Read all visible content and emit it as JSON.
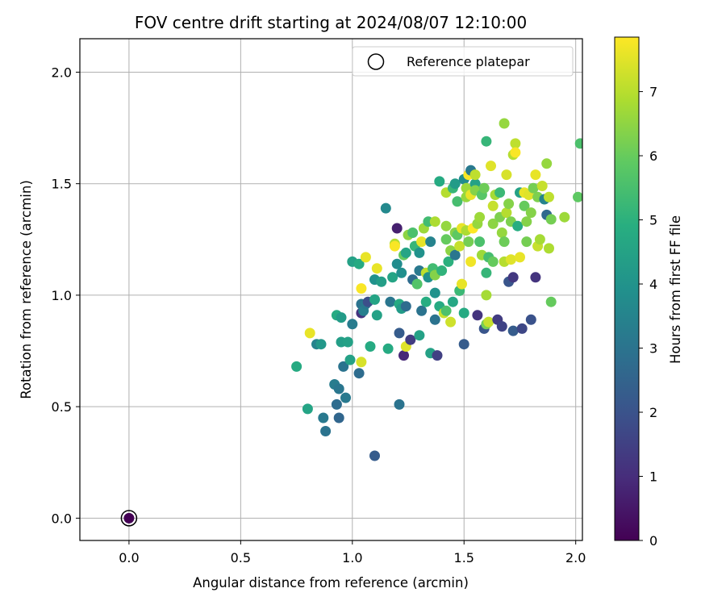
{
  "chart_data": {
    "type": "scatter",
    "title": "FOV centre drift starting at 2024/08/07 12:10:00",
    "xlabel": "Angular distance from reference (arcmin)",
    "ylabel": "Rotation from reference (arcmin)",
    "xlim": [
      -0.22,
      2.03
    ],
    "ylim": [
      -0.1,
      2.15
    ],
    "xticks": [
      "0.0",
      "0.5",
      "1.0",
      "1.5",
      "2.0"
    ],
    "xtick_values": [
      0.0,
      0.5,
      1.0,
      1.5,
      2.0
    ],
    "yticks": [
      "0.0",
      "0.5",
      "1.0",
      "1.5",
      "2.0"
    ],
    "ytick_values": [
      0.0,
      0.5,
      1.0,
      1.5,
      2.0
    ],
    "grid": true,
    "legend": {
      "placement": "top-right",
      "entries": [
        "Reference platepar"
      ]
    },
    "reference_point": {
      "x": 0.0,
      "y": 0.0,
      "hours": 0.0
    },
    "colorbar": {
      "label": "Hours from first FF file",
      "min": 0,
      "max": 7.85,
      "ticks": [
        "0",
        "1",
        "2",
        "3",
        "4",
        "5",
        "6",
        "7"
      ],
      "tick_values": [
        0,
        1,
        2,
        3,
        4,
        5,
        6,
        7
      ],
      "colormap": "viridis"
    },
    "series": [
      {
        "points": [
          [
            0.75,
            0.68,
            4.8
          ],
          [
            0.8,
            0.49,
            4.6
          ],
          [
            0.81,
            0.83,
            7.6
          ],
          [
            0.84,
            0.78,
            3.5
          ],
          [
            0.86,
            0.78,
            4.2
          ],
          [
            0.87,
            0.45,
            3.2
          ],
          [
            0.88,
            0.39,
            3.0
          ],
          [
            0.92,
            0.6,
            3.3
          ],
          [
            0.93,
            0.51,
            2.8
          ],
          [
            0.93,
            0.91,
            4.8
          ],
          [
            0.94,
            0.58,
            3.1
          ],
          [
            0.94,
            0.45,
            2.6
          ],
          [
            0.95,
            0.9,
            4.3
          ],
          [
            0.95,
            0.79,
            4.4
          ],
          [
            0.96,
            0.68,
            3.0
          ],
          [
            0.97,
            0.54,
            3.2
          ],
          [
            0.98,
            0.79,
            4.5
          ],
          [
            0.99,
            0.71,
            4.5
          ],
          [
            1.0,
            1.15,
            4.5
          ],
          [
            1.0,
            0.87,
            3.3
          ],
          [
            1.03,
            1.14,
            4.8
          ],
          [
            1.03,
            0.65,
            2.8
          ],
          [
            1.04,
            0.92,
            1.2
          ],
          [
            1.04,
            0.96,
            3.0
          ],
          [
            1.04,
            0.7,
            7.4
          ],
          [
            1.04,
            1.03,
            7.8
          ],
          [
            1.05,
            0.93,
            3.4
          ],
          [
            1.06,
            1.17,
            7.6
          ],
          [
            1.06,
            0.96,
            3.2
          ],
          [
            1.07,
            0.97,
            1.9
          ],
          [
            1.08,
            0.77,
            4.8
          ],
          [
            1.1,
            1.07,
            4.0
          ],
          [
            1.1,
            0.98,
            4.6
          ],
          [
            1.1,
            0.28,
            2.3
          ],
          [
            1.11,
            1.12,
            7.6
          ],
          [
            1.11,
            0.91,
            4.5
          ],
          [
            1.13,
            1.06,
            4.4
          ],
          [
            1.15,
            1.39,
            3.7
          ],
          [
            1.16,
            0.76,
            4.8
          ],
          [
            1.17,
            0.97,
            3.1
          ],
          [
            1.18,
            1.08,
            4.6
          ],
          [
            1.19,
            1.23,
            7.0
          ],
          [
            1.19,
            1.22,
            7.8
          ],
          [
            1.2,
            1.14,
            3.8
          ],
          [
            1.2,
            1.3,
            0.7
          ],
          [
            1.21,
            0.96,
            4.8
          ],
          [
            1.21,
            0.83,
            2.3
          ],
          [
            1.21,
            0.51,
            3.0
          ],
          [
            1.22,
            0.94,
            4.3
          ],
          [
            1.22,
            1.1,
            3.9
          ],
          [
            1.23,
            0.73,
            0.9
          ],
          [
            1.23,
            1.18,
            6.0
          ],
          [
            1.24,
            0.77,
            7.5
          ],
          [
            1.24,
            0.95,
            2.8
          ],
          [
            1.24,
            1.19,
            4.6
          ],
          [
            1.25,
            1.27,
            6.5
          ],
          [
            1.26,
            0.8,
            1.4
          ],
          [
            1.27,
            1.28,
            5.6
          ],
          [
            1.27,
            1.07,
            2.8
          ],
          [
            1.28,
            1.22,
            5.2
          ],
          [
            1.29,
            1.05,
            5.7
          ],
          [
            1.3,
            1.19,
            4.0
          ],
          [
            1.3,
            0.82,
            4.5
          ],
          [
            1.3,
            1.11,
            3.2
          ],
          [
            1.31,
            1.24,
            7.6
          ],
          [
            1.31,
            0.93,
            3.0
          ],
          [
            1.32,
            1.3,
            6.7
          ],
          [
            1.33,
            1.1,
            7.1
          ],
          [
            1.33,
            0.97,
            4.9
          ],
          [
            1.34,
            1.08,
            4.0
          ],
          [
            1.34,
            1.33,
            5.4
          ],
          [
            1.35,
            1.24,
            3.5
          ],
          [
            1.35,
            0.74,
            4.5
          ],
          [
            1.36,
            1.12,
            5.4
          ],
          [
            1.37,
            1.09,
            6.4
          ],
          [
            1.37,
            1.33,
            6.9
          ],
          [
            1.37,
            1.01,
            4.0
          ],
          [
            1.37,
            0.89,
            3.0
          ],
          [
            1.38,
            0.73,
            1.5
          ],
          [
            1.39,
            1.51,
            4.8
          ],
          [
            1.39,
            0.95,
            4.8
          ],
          [
            1.4,
            1.11,
            5.1
          ],
          [
            1.41,
            0.92,
            7.2
          ],
          [
            1.42,
            1.46,
            7.0
          ],
          [
            1.42,
            1.31,
            6.6
          ],
          [
            1.42,
            1.25,
            6.0
          ],
          [
            1.42,
            0.93,
            5.6
          ],
          [
            1.43,
            1.15,
            5.0
          ],
          [
            1.44,
            1.2,
            6.5
          ],
          [
            1.44,
            0.88,
            7.3
          ],
          [
            1.45,
            1.48,
            5.2
          ],
          [
            1.45,
            0.97,
            4.7
          ],
          [
            1.46,
            1.28,
            6.4
          ],
          [
            1.46,
            1.18,
            3.1
          ],
          [
            1.46,
            1.5,
            4.3
          ],
          [
            1.47,
            1.27,
            5.9
          ],
          [
            1.47,
            1.42,
            5.5
          ],
          [
            1.48,
            1.02,
            5.3
          ],
          [
            1.48,
            1.22,
            7.2
          ],
          [
            1.49,
            1.3,
            7.6
          ],
          [
            1.49,
            1.05,
            7.6
          ],
          [
            1.5,
            1.52,
            3.8
          ],
          [
            1.5,
            0.92,
            4.8
          ],
          [
            1.5,
            0.78,
            2.3
          ],
          [
            1.51,
            1.44,
            6.6
          ],
          [
            1.51,
            1.48,
            6.7
          ],
          [
            1.51,
            1.29,
            6.9
          ],
          [
            1.52,
            1.54,
            7.8
          ],
          [
            1.52,
            1.24,
            6.2
          ],
          [
            1.53,
            1.56,
            3.2
          ],
          [
            1.53,
            1.45,
            7.6
          ],
          [
            1.53,
            1.15,
            7.7
          ],
          [
            1.54,
            1.3,
            7.9
          ],
          [
            1.55,
            1.5,
            4.5
          ],
          [
            1.55,
            1.54,
            7.1
          ],
          [
            1.55,
            1.47,
            6.4
          ],
          [
            1.56,
            1.32,
            6.6
          ],
          [
            1.56,
            0.91,
            1.2
          ],
          [
            1.57,
            1.35,
            6.7
          ],
          [
            1.57,
            1.24,
            5.6
          ],
          [
            1.58,
            1.45,
            5.8
          ],
          [
            1.58,
            1.18,
            6.7
          ],
          [
            1.59,
            1.48,
            6.1
          ],
          [
            1.59,
            0.85,
            2.1
          ],
          [
            1.6,
            1.69,
            5.2
          ],
          [
            1.6,
            1.1,
            5.2
          ],
          [
            1.6,
            1.0,
            6.8
          ],
          [
            1.6,
            0.87,
            6.2
          ],
          [
            1.61,
            0.88,
            7.2
          ],
          [
            1.61,
            1.17,
            5.5
          ],
          [
            1.62,
            1.58,
            7.5
          ],
          [
            1.63,
            1.4,
            7.2
          ],
          [
            1.63,
            1.32,
            6.5
          ],
          [
            1.63,
            1.15,
            6.0
          ],
          [
            1.64,
            1.45,
            6.8
          ],
          [
            1.65,
            0.89,
            1.4
          ],
          [
            1.66,
            1.35,
            6.3
          ],
          [
            1.66,
            1.46,
            5.3
          ],
          [
            1.67,
            1.28,
            6.6
          ],
          [
            1.67,
            0.86,
            1.6
          ],
          [
            1.68,
            1.77,
            6.6
          ],
          [
            1.68,
            1.24,
            6.1
          ],
          [
            1.68,
            1.15,
            7.0
          ],
          [
            1.69,
            1.37,
            7.0
          ],
          [
            1.69,
            1.54,
            7.4
          ],
          [
            1.7,
            1.41,
            6.4
          ],
          [
            1.7,
            1.06,
            2.1
          ],
          [
            1.71,
            1.16,
            7.5
          ],
          [
            1.71,
            1.33,
            6.3
          ],
          [
            1.72,
            1.63,
            7.0
          ],
          [
            1.72,
            1.08,
            1.3
          ],
          [
            1.72,
            0.84,
            2.3
          ],
          [
            1.73,
            1.68,
            7.1
          ],
          [
            1.73,
            1.64,
            7.8
          ],
          [
            1.74,
            1.31,
            4.9
          ],
          [
            1.75,
            1.46,
            4.5
          ],
          [
            1.75,
            1.17,
            7.6
          ],
          [
            1.76,
            0.85,
            1.7
          ],
          [
            1.77,
            1.4,
            6.0
          ],
          [
            1.77,
            1.46,
            7.6
          ],
          [
            1.78,
            1.33,
            6.4
          ],
          [
            1.78,
            1.24,
            6.2
          ],
          [
            1.79,
            1.45,
            7.5
          ],
          [
            1.8,
            0.89,
            2.0
          ],
          [
            1.8,
            1.37,
            6.4
          ],
          [
            1.81,
            1.48,
            6.2
          ],
          [
            1.82,
            1.54,
            7.6
          ],
          [
            1.82,
            1.08,
            1.2
          ],
          [
            1.83,
            1.22,
            7.2
          ],
          [
            1.83,
            1.44,
            6.3
          ],
          [
            1.84,
            1.25,
            6.8
          ],
          [
            1.85,
            1.49,
            7.2
          ],
          [
            1.86,
            1.43,
            3.5
          ],
          [
            1.87,
            1.59,
            6.6
          ],
          [
            1.87,
            1.36,
            2.7
          ],
          [
            1.88,
            1.44,
            7.1
          ],
          [
            1.88,
            1.21,
            6.9
          ],
          [
            1.89,
            0.97,
            6.0
          ],
          [
            1.89,
            1.34,
            6.2
          ],
          [
            1.95,
            1.35,
            6.7
          ],
          [
            2.01,
            1.44,
            5.9
          ],
          [
            2.02,
            1.68,
            5.6
          ]
        ]
      }
    ]
  }
}
